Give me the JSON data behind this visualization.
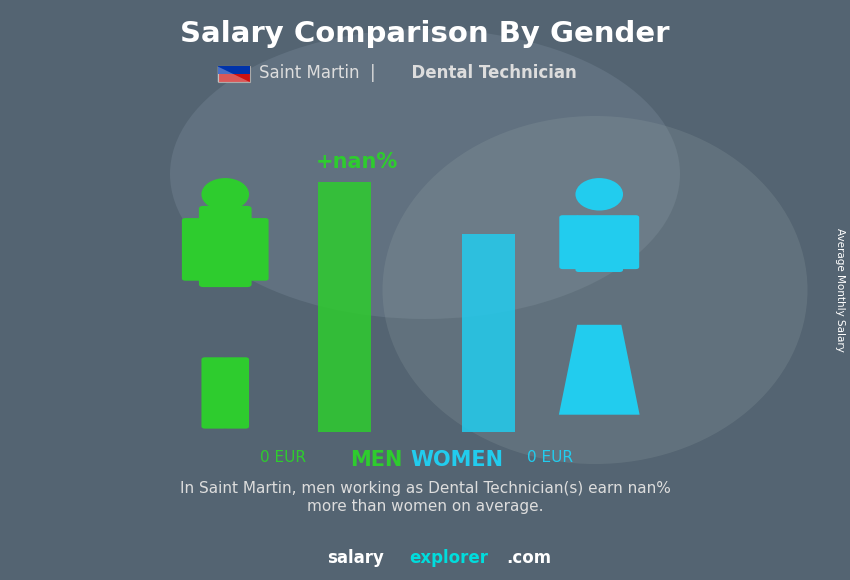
{
  "title": "Salary Comparison By Gender",
  "subtitle_country": "Saint Martin",
  "subtitle_job": "Dental Technician",
  "men_salary": 0,
  "women_salary": 0,
  "currency": "EUR",
  "diff_label": "+nan%",
  "men_label": "MEN",
  "women_label": "WOMEN",
  "men_bar_color": "#2ecc2e",
  "women_bar_color": "#22ccee",
  "men_icon_color": "#2ecc2e",
  "women_icon_color": "#22ccee",
  "men_salary_color": "#2ecc2e",
  "women_salary_color": "#22ccee",
  "diff_label_color": "#2ecc2e",
  "background_color": "#6a7a8a",
  "overlay_color": "#4a5a6a",
  "title_color": "#ffffff",
  "subtitle_color": "#dddddd",
  "description_color": "#dddddd",
  "footer_salary_color": "#ffffff",
  "footer_explorer_color": "#00dddd",
  "footer_com_color": "#ffffff",
  "ylabel": "Average Monthly Salary",
  "men_bar_height": 0.82,
  "women_bar_height": 0.65,
  "bar_alpha": 0.85,
  "icon_alpha": 1.0
}
